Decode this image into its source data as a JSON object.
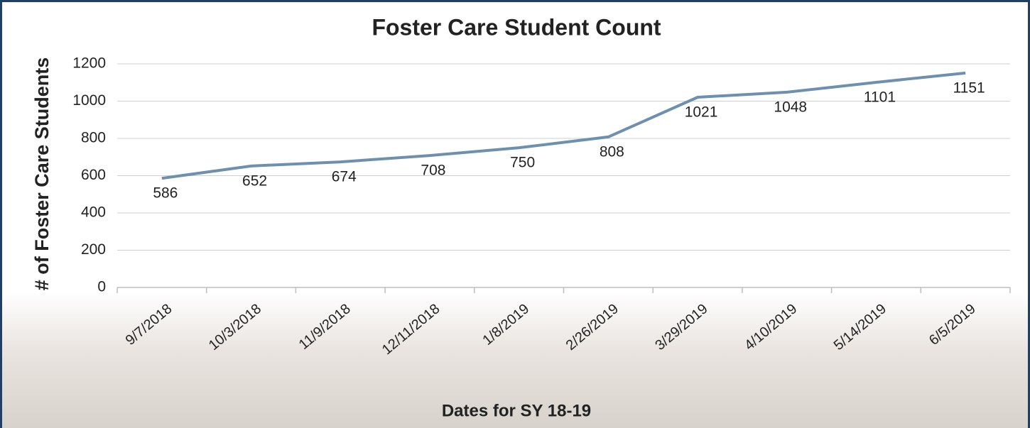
{
  "chart_data": {
    "type": "line",
    "title": "Foster Care Student Count",
    "x_label": "Dates for SY 18-19",
    "y_label": "# of Foster Care Students",
    "categories": [
      "9/7/2018",
      "10/3/2018",
      "11/9/2018",
      "12/11/2018",
      "1/8/2019",
      "2/26/2019",
      "3/29/2019",
      "4/10/2019",
      "5/14/2019",
      "6/5/2019"
    ],
    "series": [
      {
        "name": "Foster Care Students",
        "color": "#6f8fae",
        "values": [
          586,
          652,
          674,
          708,
          750,
          808,
          1021,
          1048,
          1101,
          1151
        ]
      }
    ],
    "ylim": [
      0,
      1200
    ],
    "yticks": [
      0,
      200,
      400,
      600,
      800,
      1000,
      1200
    ],
    "grid": true
  }
}
